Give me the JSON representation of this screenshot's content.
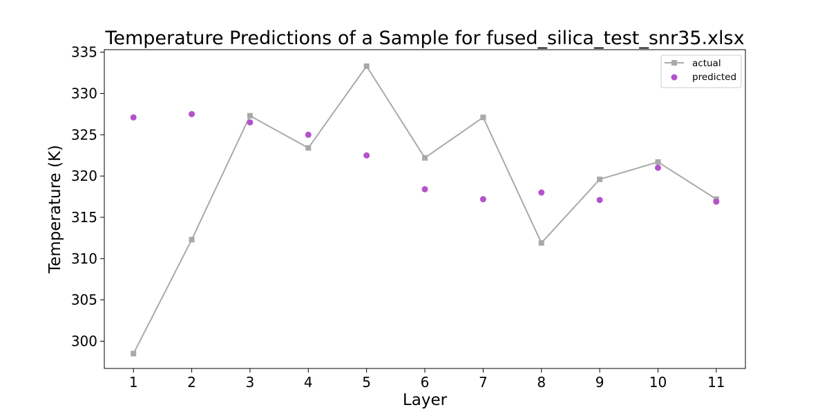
{
  "chart_data": {
    "type": "line",
    "title": "Temperature Predictions of a Sample for fused_silica_test_snr35.xlsx",
    "xlabel": "Layer",
    "ylabel": "Temperature (K)",
    "x": [
      1,
      2,
      3,
      4,
      5,
      6,
      7,
      8,
      9,
      10,
      11
    ],
    "x_ticks": [
      "1",
      "2",
      "3",
      "4",
      "5",
      "6",
      "7",
      "8",
      "9",
      "10",
      "11"
    ],
    "y_ticks": [
      "300",
      "305",
      "310",
      "315",
      "320",
      "325",
      "330",
      "335"
    ],
    "xlim": [
      0.5,
      11.5
    ],
    "ylim": [
      296.7,
      335.3
    ],
    "grid": false,
    "legend_position": "top-right",
    "series": [
      {
        "name": "actual",
        "style": "line-with-square-markers",
        "color": "#a9a9a9",
        "values": [
          298.5,
          312.3,
          327.3,
          323.4,
          333.3,
          322.2,
          327.1,
          311.9,
          319.6,
          321.7,
          317.2
        ]
      },
      {
        "name": "predicted",
        "style": "scatter-circle-markers",
        "color": "#b452cd",
        "values": [
          327.1,
          327.5,
          326.5,
          325.0,
          322.5,
          318.4,
          317.2,
          318.0,
          317.1,
          321.0,
          316.9
        ]
      }
    ]
  }
}
